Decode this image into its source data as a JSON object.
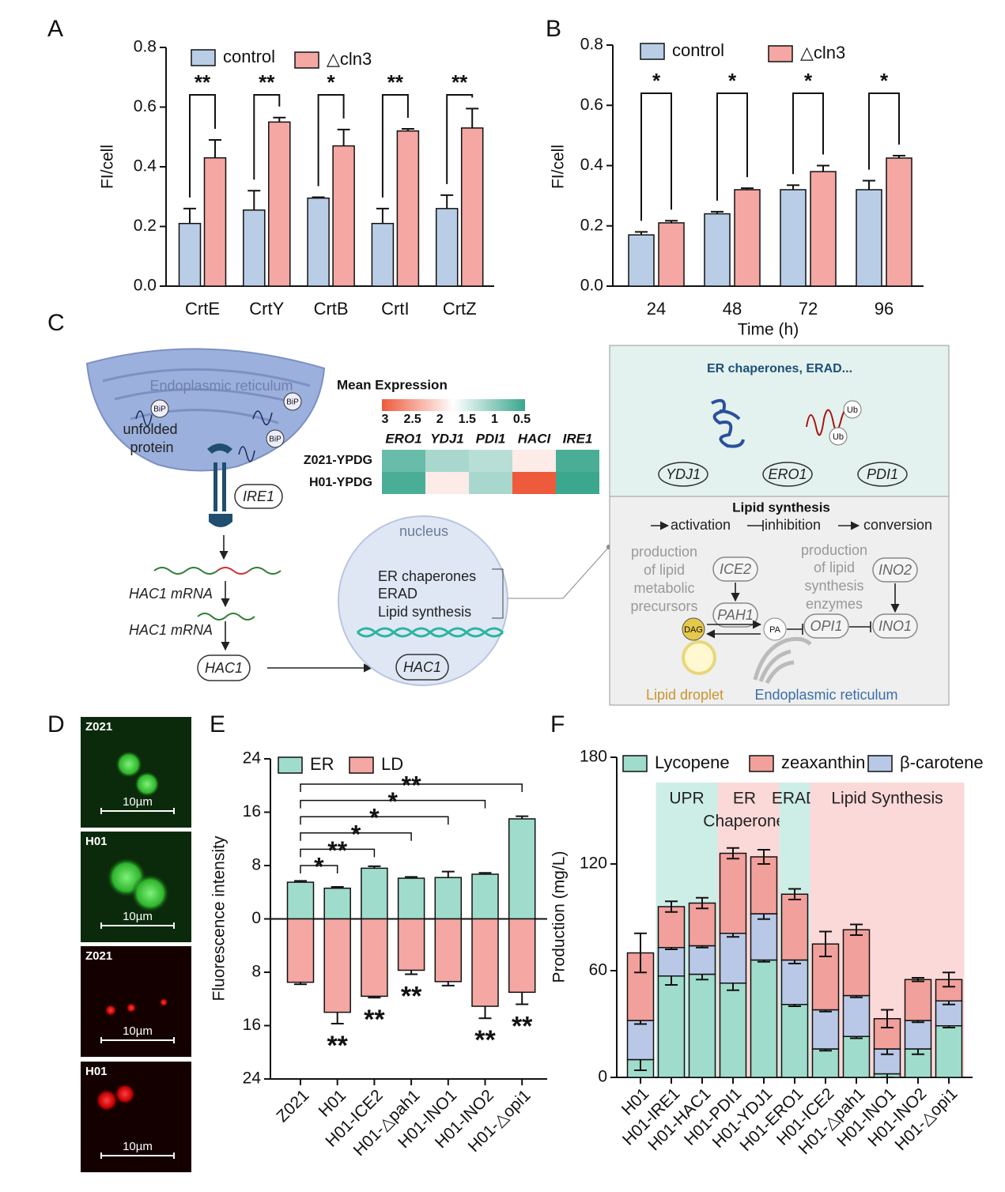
{
  "chart_data": [
    {
      "type": "bar",
      "panel_label": "A",
      "categories": [
        "CrtE",
        "CrtY",
        "CrtB",
        "CrtI",
        "CrtZ"
      ],
      "series": [
        {
          "name": "control",
          "color": "#b9cde6",
          "values": [
            0.21,
            0.255,
            0.295,
            0.21,
            0.26
          ],
          "errors": [
            0.05,
            0.065,
            0.003,
            0.05,
            0.045
          ]
        },
        {
          "name": "△cln3",
          "color": "#f4a7a3",
          "values": [
            0.43,
            0.55,
            0.47,
            0.52,
            0.53
          ],
          "errors": [
            0.06,
            0.015,
            0.055,
            0.007,
            0.065
          ]
        }
      ],
      "significance": [
        "**",
        "**",
        "*",
        "**",
        "**"
      ],
      "y_label": "FI/cell",
      "ylim": [
        0,
        0.8
      ],
      "yticks": [
        {
          "value": 0,
          "label": "0.0"
        },
        0.2,
        0.4,
        0.6,
        0.8
      ]
    },
    {
      "type": "bar",
      "panel_label": "B",
      "categories": [
        "24",
        "48",
        "72",
        "96"
      ],
      "series": [
        {
          "name": "control",
          "color": "#b9cde6",
          "values": [
            0.17,
            0.24,
            0.32,
            0.32
          ],
          "errors": [
            0.01,
            0.007,
            0.015,
            0.03
          ]
        },
        {
          "name": "△cln3",
          "color": "#f4a7a3",
          "values": [
            0.21,
            0.32,
            0.38,
            0.425
          ],
          "errors": [
            0.007,
            0.005,
            0.02,
            0.008
          ]
        }
      ],
      "significance": [
        "*",
        "*",
        "*",
        "*"
      ],
      "x_label": "Time (h)",
      "y_label": "FI/cell",
      "ylim": [
        0,
        0.8
      ],
      "yticks": [
        {
          "value": 0,
          "label": "0.0"
        },
        0.2,
        0.4,
        0.6,
        0.8
      ]
    },
    {
      "type": "heatmap",
      "title": "Mean Expression",
      "categories": [
        "ERO1",
        "YDJ1",
        "PDI1",
        "HACI",
        "IRE1"
      ],
      "rows": [
        "Z021-YPDG",
        "H01-YPDG"
      ],
      "values": [
        [
          0.8,
          1.2,
          1.3,
          1.9,
          0.6
        ],
        [
          0.6,
          1.9,
          1.2,
          3,
          0.5
        ]
      ],
      "clim": [
        3,
        0.5
      ],
      "colors": [
        "#ee5a3c",
        "#ffffff",
        "#3aa78e"
      ],
      "colorbar_ticks": [
        3,
        2.5,
        2,
        1.5,
        1,
        0.5
      ]
    },
    {
      "type": "bar",
      "panel_label": "E",
      "categories": [
        "Z021",
        "H01",
        "H01-ICE2",
        "H01-△pah1",
        "H01-INO1",
        "H01-INO2",
        "H01-△opi1"
      ],
      "series": [
        {
          "name": "ER",
          "color": "#9fdccb",
          "values": [
            5.5,
            4.6,
            7.6,
            6.1,
            6.2,
            6.7,
            15
          ],
          "errors": [
            0.2,
            0.2,
            0.3,
            0.2,
            0.9,
            0.2,
            0.4
          ]
        },
        {
          "name": "LD",
          "color": "#f4a7a3",
          "values": [
            -9.5,
            -14,
            -11.6,
            -7.7,
            -9.4,
            -13.1,
            -11
          ],
          "errors": [
            0.3,
            1.7,
            0.2,
            0.6,
            0.6,
            1.8,
            1.8
          ],
          "significance": [
            null,
            "**",
            "**",
            "**",
            null,
            "**",
            "**"
          ]
        }
      ],
      "comparisons": [
        {
          "from": 0,
          "to": 1,
          "label": "*"
        },
        {
          "from": 0,
          "to": 2,
          "label": "**"
        },
        {
          "from": 0,
          "to": 3,
          "label": "*"
        },
        {
          "from": 0,
          "to": 4,
          "label": "*"
        },
        {
          "from": 0,
          "to": 5,
          "label": "*"
        },
        {
          "from": 0,
          "to": 6,
          "label": "**"
        }
      ],
      "y_label": "Fluorescence intensity",
      "ylim": [
        -24,
        24
      ],
      "yticks": [
        {
          "value": -24,
          "label": "24"
        },
        {
          "value": -16,
          "label": "16"
        },
        {
          "value": -8,
          "label": "8"
        },
        0,
        8,
        16,
        24
      ]
    },
    {
      "type": "stacked_bar",
      "panel_label": "F",
      "categories": [
        "H01",
        "H01-IRE1",
        "H01-HAC1",
        "H01-PDI1",
        "H01-YDJ1",
        "H01-ERO1",
        "H01-ICE2",
        "H01-△pah1",
        "H01-INO1",
        "H01-INO2",
        "H01-△opi1"
      ],
      "series": [
        {
          "name": "Lycopene",
          "color": "#9fdccb",
          "values": [
            10,
            57,
            58,
            53,
            66,
            41,
            16,
            23,
            2,
            16,
            29
          ],
          "errors": [
            6,
            5,
            3,
            4,
            1,
            1,
            1,
            1,
            2,
            3,
            1
          ]
        },
        {
          "name": "zeaxanthin",
          "color": "#f1a09b",
          "values": [
            38,
            23,
            24,
            45,
            32,
            37,
            37,
            37,
            17,
            23,
            12
          ],
          "errors": [
            11,
            3,
            3,
            3,
            4,
            3,
            7,
            3,
            5,
            1,
            4
          ]
        },
        {
          "name": "β-carotene",
          "color": "#b9c8e6",
          "values": [
            22,
            16,
            16,
            28,
            26,
            25,
            22,
            23,
            14,
            16,
            14
          ],
          "errors": [
            2,
            1,
            1,
            2,
            3,
            2,
            1,
            1,
            3,
            1,
            2
          ]
        }
      ],
      "stack_order": [
        0,
        2,
        1
      ],
      "regions": [
        {
          "lines": [
            "UPR"
          ],
          "from": 1,
          "to": 2,
          "color": "#cdeee6"
        },
        {
          "lines": [
            "ER",
            "Chaperones"
          ],
          "from": 3,
          "to": 4,
          "color": "#fbd9d8"
        },
        {
          "lines": [
            "ERAD"
          ],
          "from": 5,
          "to": 5,
          "color": "#cdeee6"
        },
        {
          "lines": [
            "Lipid Synthesis"
          ],
          "from": 6,
          "to": 10,
          "color": "#fbd9d8"
        }
      ],
      "y_label": "Production (mg/L)",
      "ylim": [
        0,
        180
      ],
      "yticks": [
        0,
        60,
        120,
        180
      ]
    }
  ],
  "diagram": {
    "panel_label": "C",
    "er_label": "Endoplasmic reticulum",
    "bip": [
      "BiP",
      "BiP",
      "BiP"
    ],
    "unfolded_protein": [
      "unfolded",
      "protein"
    ],
    "ire1": "IRE1",
    "hac1_mrna": [
      "HAC1 mRNA",
      "HAC1 mRNA"
    ],
    "hac1": "HAC1",
    "nucleus": {
      "title": "nucleus",
      "items": [
        "ER chaperones",
        "ERAD",
        "Lipid synthesis"
      ],
      "gene": "HAC1"
    },
    "box": {
      "top_title": "ER chaperones, ERAD...",
      "ub": [
        "Ub",
        "Ub"
      ],
      "genes": [
        "YDJ1",
        "ERO1",
        "PDI1"
      ],
      "lipid_title": "Lipid synthesis",
      "key": [
        "activation",
        "inhibition",
        "conversion"
      ],
      "precursors": [
        "production",
        "of lipid",
        "metabolic",
        "precursors"
      ],
      "enzymes": [
        "production",
        "of lipid",
        "synthesis",
        "enzymes"
      ],
      "nodes": [
        "ICE2",
        "PAH1",
        "INO2",
        "OPI1",
        "INO1"
      ],
      "dag": "DAG",
      "pa": "PA",
      "lipid_droplet": "Lipid droplet",
      "er": "Endoplasmic reticulum"
    }
  },
  "micrographs": {
    "panel_label": "D",
    "panels": [
      {
        "label": "Z021",
        "scale": "10µm",
        "channel": "green"
      },
      {
        "label": "H01",
        "scale": "10µm",
        "channel": "green"
      },
      {
        "label": "Z021",
        "scale": "10µm",
        "channel": "red"
      },
      {
        "label": "H01",
        "scale": "10µm",
        "channel": "red"
      }
    ]
  }
}
